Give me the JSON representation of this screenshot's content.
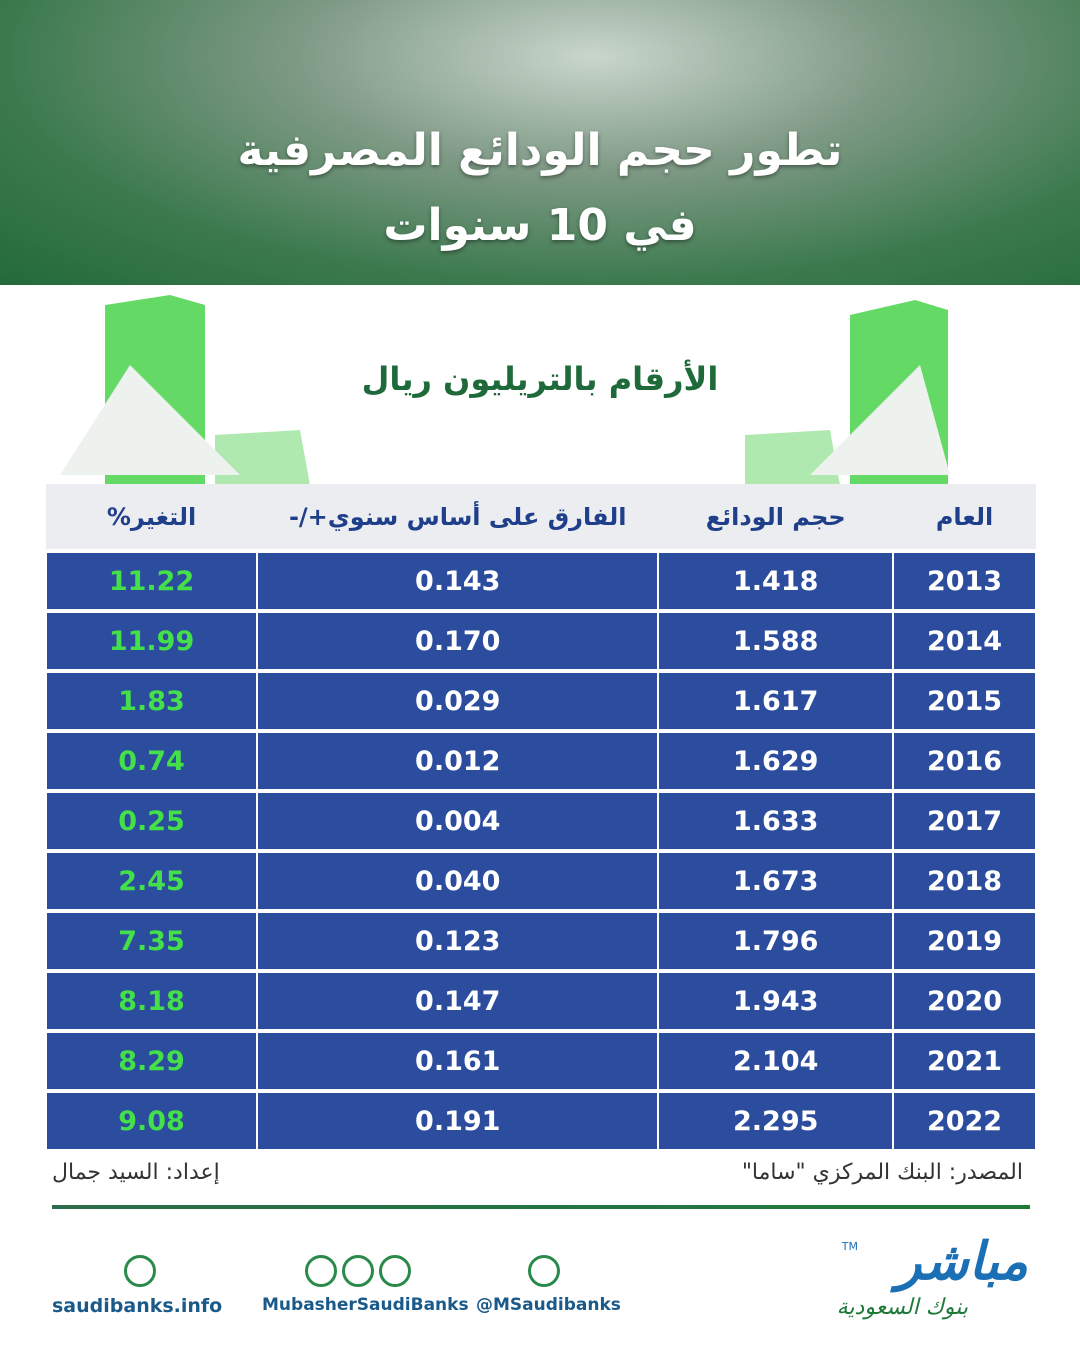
{
  "header": {
    "title_line1": "تطور حجم الودائع المصرفية",
    "title_line2": "في 10 سنوات"
  },
  "subtitle": "الأرقام بالتريليون ريال",
  "table": {
    "columns": [
      "العام",
      "حجم الودائع",
      "الفارق على أساس سنوي+/-",
      "التغير%"
    ],
    "rows": [
      [
        "2013",
        "1.418",
        "0.143",
        "11.22"
      ],
      [
        "2014",
        "1.588",
        "0.170",
        "11.99"
      ],
      [
        "2015",
        "1.617",
        "0.029",
        "1.83"
      ],
      [
        "2016",
        "1.629",
        "0.012",
        "0.74"
      ],
      [
        "2017",
        "1.633",
        "0.004",
        "0.25"
      ],
      [
        "2018",
        "1.673",
        "0.040",
        "2.45"
      ],
      [
        "2019",
        "1.796",
        "0.123",
        "7.35"
      ],
      [
        "2020",
        "1.943",
        "0.147",
        "8.18"
      ],
      [
        "2021",
        "2.104",
        "0.161",
        "8.29"
      ],
      [
        "2022",
        "2.295",
        "0.191",
        "9.08"
      ]
    ]
  },
  "source": "المصدر: البنك المركزي \"ساما\"",
  "prepared_by": "إعداد: السيد جمال",
  "footer": {
    "website": "saudibanks.info",
    "social": "MubasherSaudiBanks",
    "twitter": "@MSaudibanks"
  },
  "logo": {
    "name": "مباشر",
    "tagline": "بنوك السعودية",
    "mark": "TM"
  }
}
